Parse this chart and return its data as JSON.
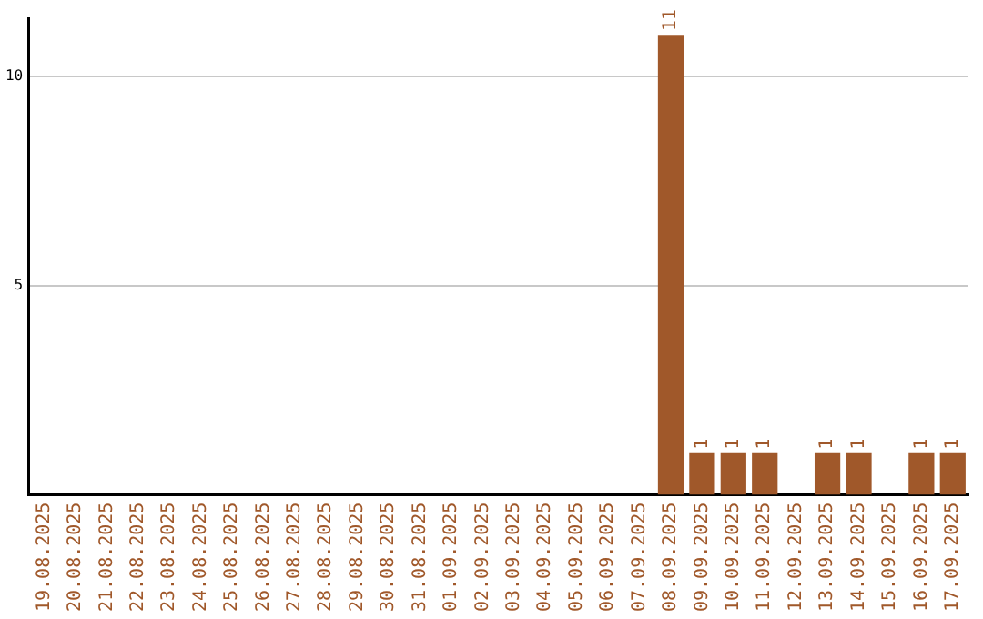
{
  "chart_data": {
    "type": "bar",
    "categories": [
      "19.08.2025",
      "20.08.2025",
      "21.08.2025",
      "22.08.2025",
      "23.08.2025",
      "24.08.2025",
      "25.08.2025",
      "26.08.2025",
      "27.08.2025",
      "28.08.2025",
      "29.08.2025",
      "30.08.2025",
      "31.08.2025",
      "01.09.2025",
      "02.09.2025",
      "03.09.2025",
      "04.09.2025",
      "05.09.2025",
      "06.09.2025",
      "07.09.2025",
      "08.09.2025",
      "09.09.2025",
      "10.09.2025",
      "11.09.2025",
      "12.09.2025",
      "13.09.2025",
      "14.09.2025",
      "15.09.2025",
      "16.09.2025",
      "17.09.2025"
    ],
    "values": [
      0,
      0,
      0,
      0,
      0,
      0,
      0,
      0,
      0,
      0,
      0,
      0,
      0,
      0,
      0,
      0,
      0,
      0,
      0,
      0,
      11,
      1,
      1,
      1,
      0,
      1,
      1,
      0,
      1,
      1
    ],
    "value_labels": [
      null,
      null,
      null,
      null,
      null,
      null,
      null,
      null,
      null,
      null,
      null,
      null,
      null,
      null,
      null,
      null,
      null,
      null,
      null,
      null,
      "11",
      "1",
      "1",
      "1",
      null,
      "1",
      "1",
      null,
      "1",
      "1"
    ],
    "color": "#a0582a",
    "ylim": [
      0,
      11.4
    ],
    "yticks": [
      5,
      10
    ],
    "grid": "y",
    "legend": false
  }
}
